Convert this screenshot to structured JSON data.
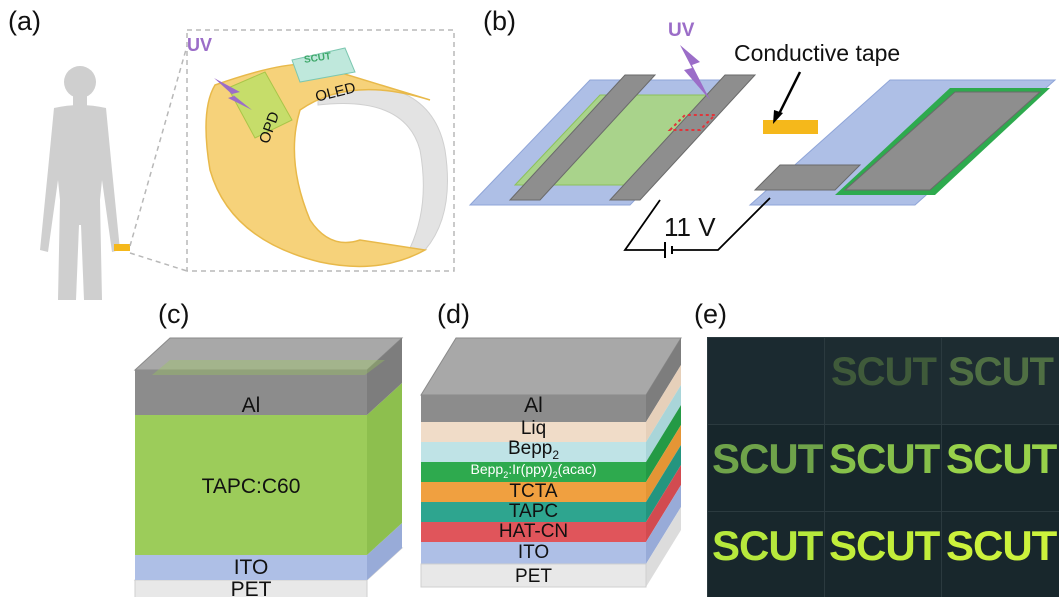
{
  "panels": {
    "a": {
      "label": "(a)",
      "uv": "UV",
      "opd": "OPD",
      "oled": "OLED",
      "scut_logo": "SCUT"
    },
    "b": {
      "label": "(b)",
      "uv": "UV",
      "conductive_tape": "Conductive tape",
      "voltage": "11 V"
    },
    "c": {
      "label": "(c)",
      "layers": [
        "Al",
        "TAPC:C60",
        "ITO",
        "PET"
      ]
    },
    "d": {
      "label": "(d)",
      "layers": [
        "Al",
        "Liq",
        "Bepp",
        "Bepp",
        "TCTA",
        "TAPC",
        "HAT-CN",
        "ITO",
        "PET"
      ],
      "bepp2_sub": "2",
      "emissive_rest_1": ":Ir(ppy)",
      "emissive_sub_2": "2",
      "emissive_rest_2": "(acac)"
    },
    "e": {
      "label": "(e)",
      "photo_text": "SCUT"
    }
  },
  "colors": {
    "al": "#8c8c8c",
    "green_active": "#9ccc5a",
    "ito": "#aebfe6",
    "pet": "#e8e8e8",
    "liq": "#f0dcc8",
    "bepp2": "#bfe3e6",
    "emissive": "#2eaa4e",
    "tcta": "#f0a040",
    "tapc": "#2ea58f",
    "hatcn": "#e0555b",
    "uv": "#9b6dc8",
    "tape": "#f5b81b"
  }
}
